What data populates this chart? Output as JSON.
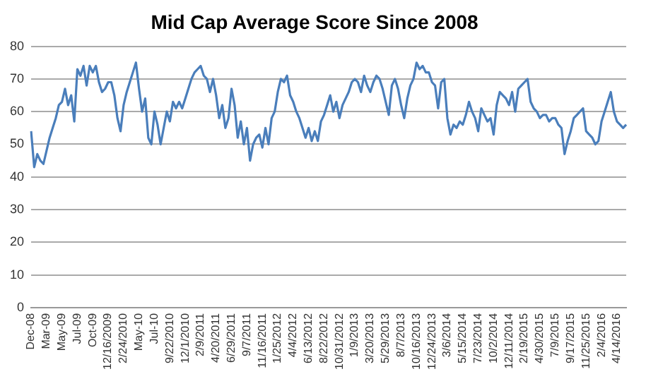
{
  "chart_data": {
    "type": "line",
    "title": "Mid Cap Average Score Since 2008",
    "categories": [
      "Dec-08",
      null,
      null,
      null,
      null,
      "Mar-09",
      null,
      null,
      null,
      null,
      "May-09",
      null,
      null,
      null,
      null,
      "Jul-09",
      null,
      null,
      null,
      null,
      "Oct-09",
      null,
      null,
      null,
      null,
      "12/16/2009",
      null,
      null,
      null,
      null,
      "2/24/2010",
      null,
      null,
      null,
      null,
      "May-10",
      null,
      null,
      null,
      null,
      "Jul-10",
      null,
      null,
      null,
      null,
      "9/22/2010",
      null,
      null,
      null,
      null,
      "12/1/2010",
      null,
      null,
      null,
      null,
      "2/9/2011",
      null,
      null,
      null,
      null,
      "4/20/2011",
      null,
      null,
      null,
      null,
      "6/29/2011",
      null,
      null,
      null,
      null,
      "9/7/2011",
      null,
      null,
      null,
      null,
      "11/16/2011",
      null,
      null,
      null,
      null,
      "1/25/2012",
      null,
      null,
      null,
      null,
      "4/4/2012",
      null,
      null,
      null,
      null,
      "6/13/2012",
      null,
      null,
      null,
      null,
      "8/22/2012",
      null,
      null,
      null,
      null,
      "10/31/2012",
      null,
      null,
      null,
      null,
      "1/9/2013",
      null,
      null,
      null,
      null,
      "3/20/2013",
      null,
      null,
      null,
      null,
      "5/29/2013",
      null,
      null,
      null,
      null,
      "8/7/2013",
      null,
      null,
      null,
      null,
      "10/16/2013",
      null,
      null,
      null,
      null,
      "12/24/2013",
      null,
      null,
      null,
      null,
      "3/6/2014",
      null,
      null,
      null,
      null,
      "5/15/2014",
      null,
      null,
      null,
      null,
      "7/23/2014",
      null,
      null,
      null,
      null,
      "10/2/2014",
      null,
      null,
      null,
      null,
      "12/11/2014",
      null,
      null,
      null,
      null,
      "2/19/2015",
      null,
      null,
      null,
      null,
      "4/30/2015",
      null,
      null,
      null,
      null,
      "7/9/2015",
      null,
      null,
      null,
      null,
      "9/17/2015",
      null,
      null,
      null,
      null,
      "11/25/2015",
      null,
      null,
      null,
      null,
      "2/4/2016",
      null,
      null,
      null,
      null,
      "4/14/2016",
      null,
      null,
      null
    ],
    "series": [
      {
        "color": "#4a7ebb",
        "values": [
          54,
          43,
          47,
          45,
          44,
          48,
          52,
          55,
          58,
          62,
          63,
          67,
          62,
          65,
          57,
          73,
          71,
          74,
          68,
          74,
          72,
          74,
          69,
          66,
          67,
          69,
          69,
          65,
          58,
          54,
          62,
          66,
          69,
          72,
          75,
          67,
          60,
          64,
          52,
          50,
          60,
          56,
          50,
          55,
          60,
          57,
          63,
          61,
          63,
          61,
          64,
          67,
          70,
          72,
          73,
          74,
          71,
          70,
          66,
          70,
          65,
          58,
          62,
          55,
          58,
          67,
          62,
          52,
          57,
          50,
          55,
          45,
          50,
          52,
          53,
          49,
          55,
          50,
          58,
          60,
          66,
          70,
          69,
          71,
          65,
          63,
          60,
          58,
          55,
          52,
          55,
          51,
          54,
          51,
          57,
          59,
          62,
          65,
          60,
          63,
          58,
          62,
          64,
          66,
          69,
          70,
          69,
          66,
          71,
          68,
          66,
          69,
          71,
          70,
          67,
          63,
          59,
          68,
          70,
          67,
          62,
          58,
          64,
          68,
          70,
          75,
          73,
          74,
          72,
          72,
          69,
          68,
          61,
          69,
          70,
          58,
          53,
          56,
          55,
          57,
          56,
          59,
          63,
          60,
          58,
          54,
          61,
          59,
          57,
          58,
          53,
          62,
          66,
          65,
          64,
          62,
          66,
          60,
          67,
          68,
          69,
          70,
          63,
          61,
          60,
          58,
          59,
          59,
          57,
          58,
          58,
          56,
          55,
          47,
          51,
          54,
          58,
          59,
          60,
          61,
          54,
          53,
          52,
          50,
          51,
          57,
          60,
          63,
          66,
          60,
          57,
          56,
          55,
          56
        ]
      }
    ],
    "ylim": [
      0,
      80
    ],
    "yticks": [
      0,
      10,
      20,
      30,
      40,
      50,
      60,
      70,
      80
    ],
    "grid": "y",
    "marker": "none",
    "line_style": "solid"
  }
}
